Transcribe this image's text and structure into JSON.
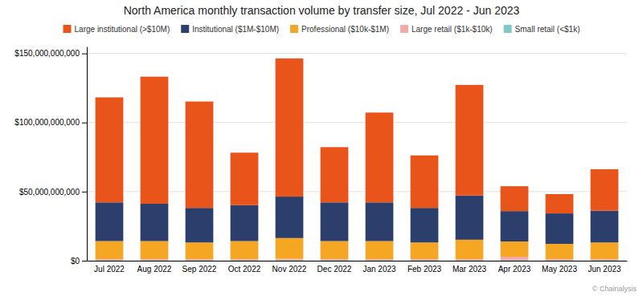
{
  "chart_data": {
    "type": "bar",
    "stacked": true,
    "title": "North America monthly transaction volume by transfer size, Jul 2022 - Jun 2023",
    "categories": [
      "Jul 2022",
      "Aug 2022",
      "Sep 2022",
      "Oct 2022",
      "Nov 2022",
      "Dec 2022",
      "Jan 2023",
      "Feb 2023",
      "Mar 2023",
      "Apr 2023",
      "May 2023",
      "Jun 2023"
    ],
    "series": [
      {
        "name": "Small retail (<$1k)",
        "color": "#7EC8C8",
        "values": [
          400000000,
          400000000,
          400000000,
          400000000,
          400000000,
          400000000,
          400000000,
          400000000,
          400000000,
          400000000,
          400000000,
          400000000
        ]
      },
      {
        "name": "Large retail ($1k-$10k)",
        "color": "#F4AAAA",
        "values": [
          800000000,
          800000000,
          800000000,
          800000000,
          1000000000,
          800000000,
          800000000,
          800000000,
          800000000,
          2500000000,
          800000000,
          800000000
        ]
      },
      {
        "name": "Professional ($10k-$1M)",
        "color": "#F5A623",
        "values": [
          13000000000,
          13000000000,
          12000000000,
          13000000000,
          15000000000,
          13000000000,
          13000000000,
          12000000000,
          14000000000,
          11000000000,
          11000000000,
          12000000000
        ]
      },
      {
        "name": "Institutional ($1M-$10M)",
        "color": "#2C3E6B",
        "values": [
          28000000000,
          27000000000,
          25000000000,
          26000000000,
          30000000000,
          28000000000,
          28000000000,
          25000000000,
          32000000000,
          22000000000,
          22000000000,
          23000000000
        ]
      },
      {
        "name": "Large institutional (>$10M)",
        "color": "#E8541A",
        "values": [
          76000000000,
          92000000000,
          77000000000,
          38000000000,
          100000000000,
          40000000000,
          65000000000,
          38000000000,
          80000000000,
          18000000000,
          14000000000,
          30000000000
        ]
      }
    ],
    "ylim": [
      0,
      155000000000
    ],
    "yticks": [
      {
        "value": 0,
        "label": "$0"
      },
      {
        "value": 50000000000,
        "label": "$50,000,000,000"
      },
      {
        "value": 100000000000,
        "label": "$100,000,000,000"
      },
      {
        "value": 150000000000,
        "label": "$150,000,000,000"
      }
    ],
    "grid": true,
    "legend": "top",
    "annotations": [
      "© Chainalysis"
    ]
  }
}
